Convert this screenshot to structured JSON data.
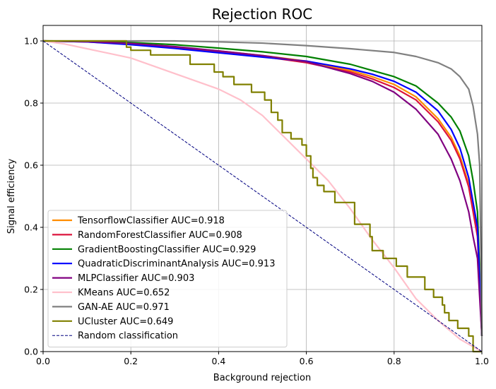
{
  "chart_data": {
    "type": "line",
    "title": "Rejection ROC",
    "xlabel": "Background rejection",
    "ylabel": "Signal efficiency",
    "xlim": [
      0.0,
      1.0
    ],
    "ylim": [
      0.0,
      1.05
    ],
    "xticks": [
      0.0,
      0.2,
      0.4,
      0.6,
      0.8,
      1.0
    ],
    "yticks": [
      0.0,
      0.2,
      0.4,
      0.6,
      0.8,
      1.0
    ],
    "xtick_labels": [
      "0.0",
      "0.2",
      "0.4",
      "0.6",
      "0.8",
      "1.0"
    ],
    "ytick_labels": [
      "0.0",
      "0.2",
      "0.4",
      "0.6",
      "0.8",
      "1.0"
    ],
    "grid": true,
    "legend_position": "lower-left",
    "series": [
      {
        "name": "TensorflowClassifier AUC=0.918",
        "color": "#ff8c00",
        "style": "solid",
        "x": [
          0.0,
          0.1,
          0.2,
          0.3,
          0.4,
          0.5,
          0.6,
          0.7,
          0.75,
          0.8,
          0.85,
          0.9,
          0.93,
          0.95,
          0.97,
          0.98,
          0.99,
          1.0
        ],
        "y": [
          1.0,
          0.998,
          0.99,
          0.98,
          0.968,
          0.953,
          0.935,
          0.905,
          0.885,
          0.86,
          0.82,
          0.75,
          0.69,
          0.63,
          0.54,
          0.46,
          0.38,
          0.05
        ]
      },
      {
        "name": "RandomForestClassifier AUC=0.908",
        "color": "#dc143c",
        "style": "solid",
        "x": [
          0.0,
          0.1,
          0.2,
          0.3,
          0.4,
          0.5,
          0.6,
          0.7,
          0.75,
          0.8,
          0.85,
          0.9,
          0.93,
          0.95,
          0.97,
          0.98,
          0.99,
          1.0
        ],
        "y": [
          1.0,
          0.997,
          0.99,
          0.98,
          0.966,
          0.95,
          0.93,
          0.9,
          0.878,
          0.85,
          0.81,
          0.74,
          0.68,
          0.62,
          0.53,
          0.45,
          0.37,
          0.05
        ]
      },
      {
        "name": "GradientBoostingClassifier AUC=0.929",
        "color": "#008000",
        "style": "solid",
        "x": [
          0.0,
          0.1,
          0.2,
          0.3,
          0.4,
          0.5,
          0.6,
          0.7,
          0.75,
          0.8,
          0.85,
          0.9,
          0.93,
          0.95,
          0.97,
          0.98,
          0.99,
          1.0
        ],
        "y": [
          1.0,
          0.999,
          0.995,
          0.988,
          0.977,
          0.965,
          0.95,
          0.925,
          0.905,
          0.885,
          0.855,
          0.8,
          0.755,
          0.71,
          0.63,
          0.55,
          0.45,
          0.05
        ]
      },
      {
        "name": "QuadraticDiscriminantAnalysis AUC=0.913",
        "color": "#0000ff",
        "style": "solid",
        "x": [
          0.0,
          0.1,
          0.2,
          0.3,
          0.4,
          0.5,
          0.6,
          0.7,
          0.75,
          0.8,
          0.85,
          0.9,
          0.93,
          0.95,
          0.97,
          0.98,
          0.99,
          1.0
        ],
        "y": [
          1.0,
          0.997,
          0.988,
          0.976,
          0.962,
          0.948,
          0.935,
          0.91,
          0.893,
          0.87,
          0.835,
          0.775,
          0.715,
          0.655,
          0.56,
          0.48,
          0.4,
          0.05
        ]
      },
      {
        "name": "MLPClassifier AUC=0.903",
        "color": "#800080",
        "style": "solid",
        "x": [
          0.0,
          0.1,
          0.2,
          0.3,
          0.4,
          0.5,
          0.6,
          0.7,
          0.75,
          0.8,
          0.85,
          0.9,
          0.93,
          0.95,
          0.97,
          0.98,
          0.99,
          1.0
        ],
        "y": [
          1.0,
          0.998,
          0.992,
          0.982,
          0.968,
          0.953,
          0.933,
          0.895,
          0.87,
          0.835,
          0.78,
          0.7,
          0.62,
          0.55,
          0.45,
          0.37,
          0.3,
          0.05
        ]
      },
      {
        "name": "KMeans AUC=0.652",
        "color": "#ffc0cb",
        "style": "solid",
        "x": [
          0.0,
          0.05,
          0.1,
          0.15,
          0.2,
          0.25,
          0.3,
          0.35,
          0.4,
          0.45,
          0.5,
          0.55,
          0.6,
          0.65,
          0.7,
          0.75,
          0.8,
          0.85,
          0.9,
          0.95,
          1.0
        ],
        "y": [
          1.0,
          0.99,
          0.975,
          0.96,
          0.945,
          0.92,
          0.895,
          0.87,
          0.845,
          0.81,
          0.76,
          0.69,
          0.62,
          0.55,
          0.46,
          0.36,
          0.27,
          0.17,
          0.1,
          0.04,
          0.0
        ]
      },
      {
        "name": "GAN-AE AUC=0.971",
        "color": "#808080",
        "style": "solid",
        "x": [
          0.0,
          0.1,
          0.2,
          0.3,
          0.4,
          0.5,
          0.6,
          0.7,
          0.8,
          0.85,
          0.9,
          0.93,
          0.95,
          0.97,
          0.98,
          0.99,
          0.995,
          1.0
        ],
        "y": [
          1.0,
          1.0,
          1.0,
          1.0,
          0.997,
          0.993,
          0.985,
          0.975,
          0.963,
          0.95,
          0.93,
          0.91,
          0.885,
          0.845,
          0.79,
          0.7,
          0.6,
          0.05
        ]
      },
      {
        "name": "UCluster AUC=0.649",
        "color": "#808000",
        "style": "step",
        "x": [
          0.0,
          0.19,
          0.2,
          0.245,
          0.335,
          0.39,
          0.41,
          0.435,
          0.475,
          0.505,
          0.52,
          0.535,
          0.545,
          0.565,
          0.59,
          0.6,
          0.61,
          0.615,
          0.625,
          0.64,
          0.665,
          0.71,
          0.745,
          0.75,
          0.775,
          0.805,
          0.83,
          0.87,
          0.89,
          0.91,
          0.915,
          0.925,
          0.945,
          0.97,
          0.98,
          1.0
        ],
        "y": [
          1.0,
          0.98,
          0.97,
          0.955,
          0.925,
          0.9,
          0.885,
          0.86,
          0.835,
          0.81,
          0.77,
          0.745,
          0.705,
          0.685,
          0.665,
          0.63,
          0.59,
          0.56,
          0.535,
          0.515,
          0.48,
          0.41,
          0.37,
          0.325,
          0.3,
          0.275,
          0.24,
          0.2,
          0.175,
          0.15,
          0.125,
          0.1,
          0.075,
          0.05,
          0.0,
          0.0
        ]
      },
      {
        "name": "Random classification",
        "color": "#000080",
        "style": "dashed",
        "x": [
          0.0,
          1.0
        ],
        "y": [
          1.0,
          0.0
        ]
      }
    ]
  }
}
